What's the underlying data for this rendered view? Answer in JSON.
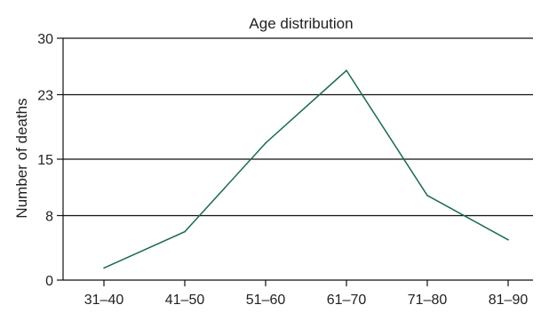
{
  "chart_data": {
    "type": "line",
    "title": "Age distribution",
    "xlabel": "",
    "ylabel": "Number of deaths",
    "categories": [
      "31–40",
      "41–50",
      "51–60",
      "61–70",
      "71–80",
      "81–90"
    ],
    "series": [
      {
        "values": [
          1.5,
          6,
          17,
          26,
          10.5,
          5
        ],
        "color": "#1a6b4a"
      }
    ],
    "ylim": [
      0,
      30
    ],
    "yticks": [
      0,
      8,
      15,
      23,
      30
    ],
    "ytick_labels": [
      "0",
      "8",
      "15",
      "23",
      "30"
    ],
    "grid": "horizontal",
    "legend": "none"
  }
}
